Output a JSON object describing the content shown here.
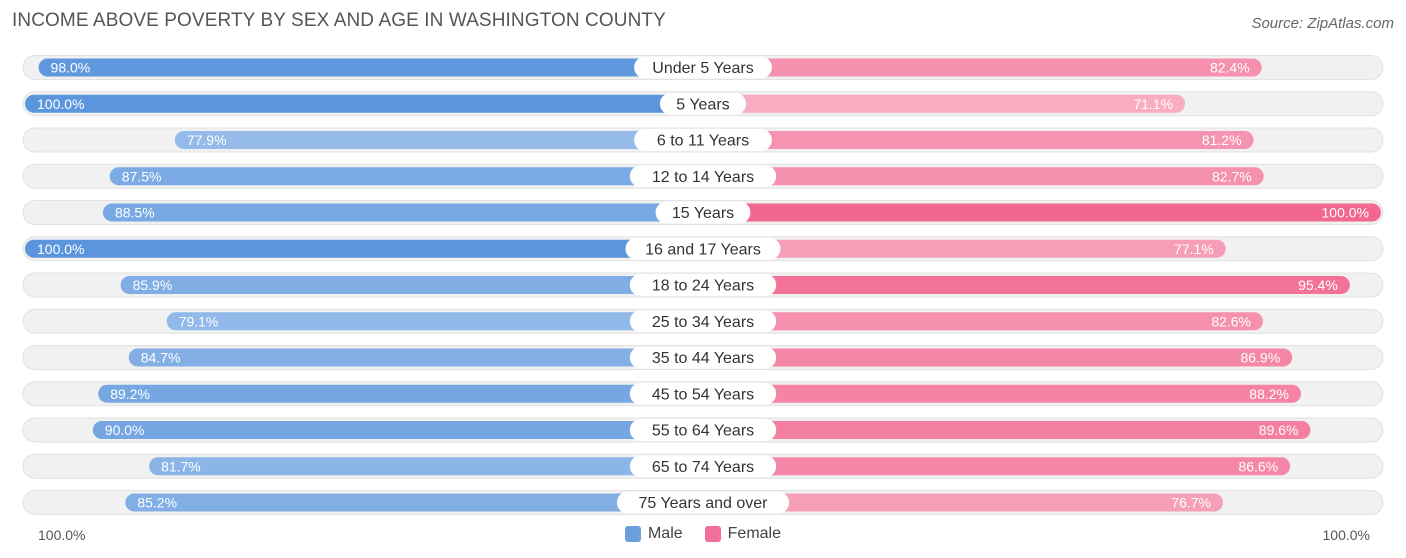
{
  "title": "INCOME ABOVE POVERTY BY SEX AND AGE IN WASHINGTON COUNTY",
  "source": "Source: ZipAtlas.com",
  "axis": {
    "left_label": "100.0%",
    "right_label": "100.0%"
  },
  "legend": {
    "male": "Male",
    "female": "Female"
  },
  "colors": {
    "male_strong": "#5b95dc",
    "male_light": "#a9c8ee",
    "female_strong": "#f2678f",
    "female_light": "#f7afc4",
    "track": "#f1f1f1",
    "label_bg": "#ffffff"
  },
  "chart_data": {
    "type": "bar",
    "orientation": "diverging-horizontal",
    "title": "INCOME ABOVE POVERTY BY SEX AND AGE IN WASHINGTON COUNTY",
    "categories": [
      "Under 5 Years",
      "5 Years",
      "6 to 11 Years",
      "12 to 14 Years",
      "15 Years",
      "16 and 17 Years",
      "18 to 24 Years",
      "25 to 34 Years",
      "35 to 44 Years",
      "45 to 54 Years",
      "55 to 64 Years",
      "65 to 74 Years",
      "75 Years and over"
    ],
    "series": [
      {
        "name": "Male",
        "values": [
          98.0,
          100.0,
          77.9,
          87.5,
          88.5,
          100.0,
          85.9,
          79.1,
          84.7,
          89.2,
          90.0,
          81.7,
          85.2
        ],
        "labels": [
          "98.0%",
          "100.0%",
          "77.9%",
          "87.5%",
          "88.5%",
          "100.0%",
          "85.9%",
          "79.1%",
          "84.7%",
          "89.2%",
          "90.0%",
          "81.7%",
          "85.2%"
        ]
      },
      {
        "name": "Female",
        "values": [
          82.4,
          71.1,
          81.2,
          82.7,
          100.0,
          77.1,
          95.4,
          82.6,
          86.9,
          88.2,
          89.6,
          86.6,
          76.7
        ],
        "labels": [
          "82.4%",
          "71.1%",
          "81.2%",
          "82.7%",
          "100.0%",
          "77.1%",
          "95.4%",
          "82.6%",
          "86.9%",
          "88.2%",
          "89.6%",
          "86.6%",
          "76.7%"
        ]
      }
    ],
    "xlim": [
      0,
      100
    ],
    "legend_position": "bottom-center"
  }
}
